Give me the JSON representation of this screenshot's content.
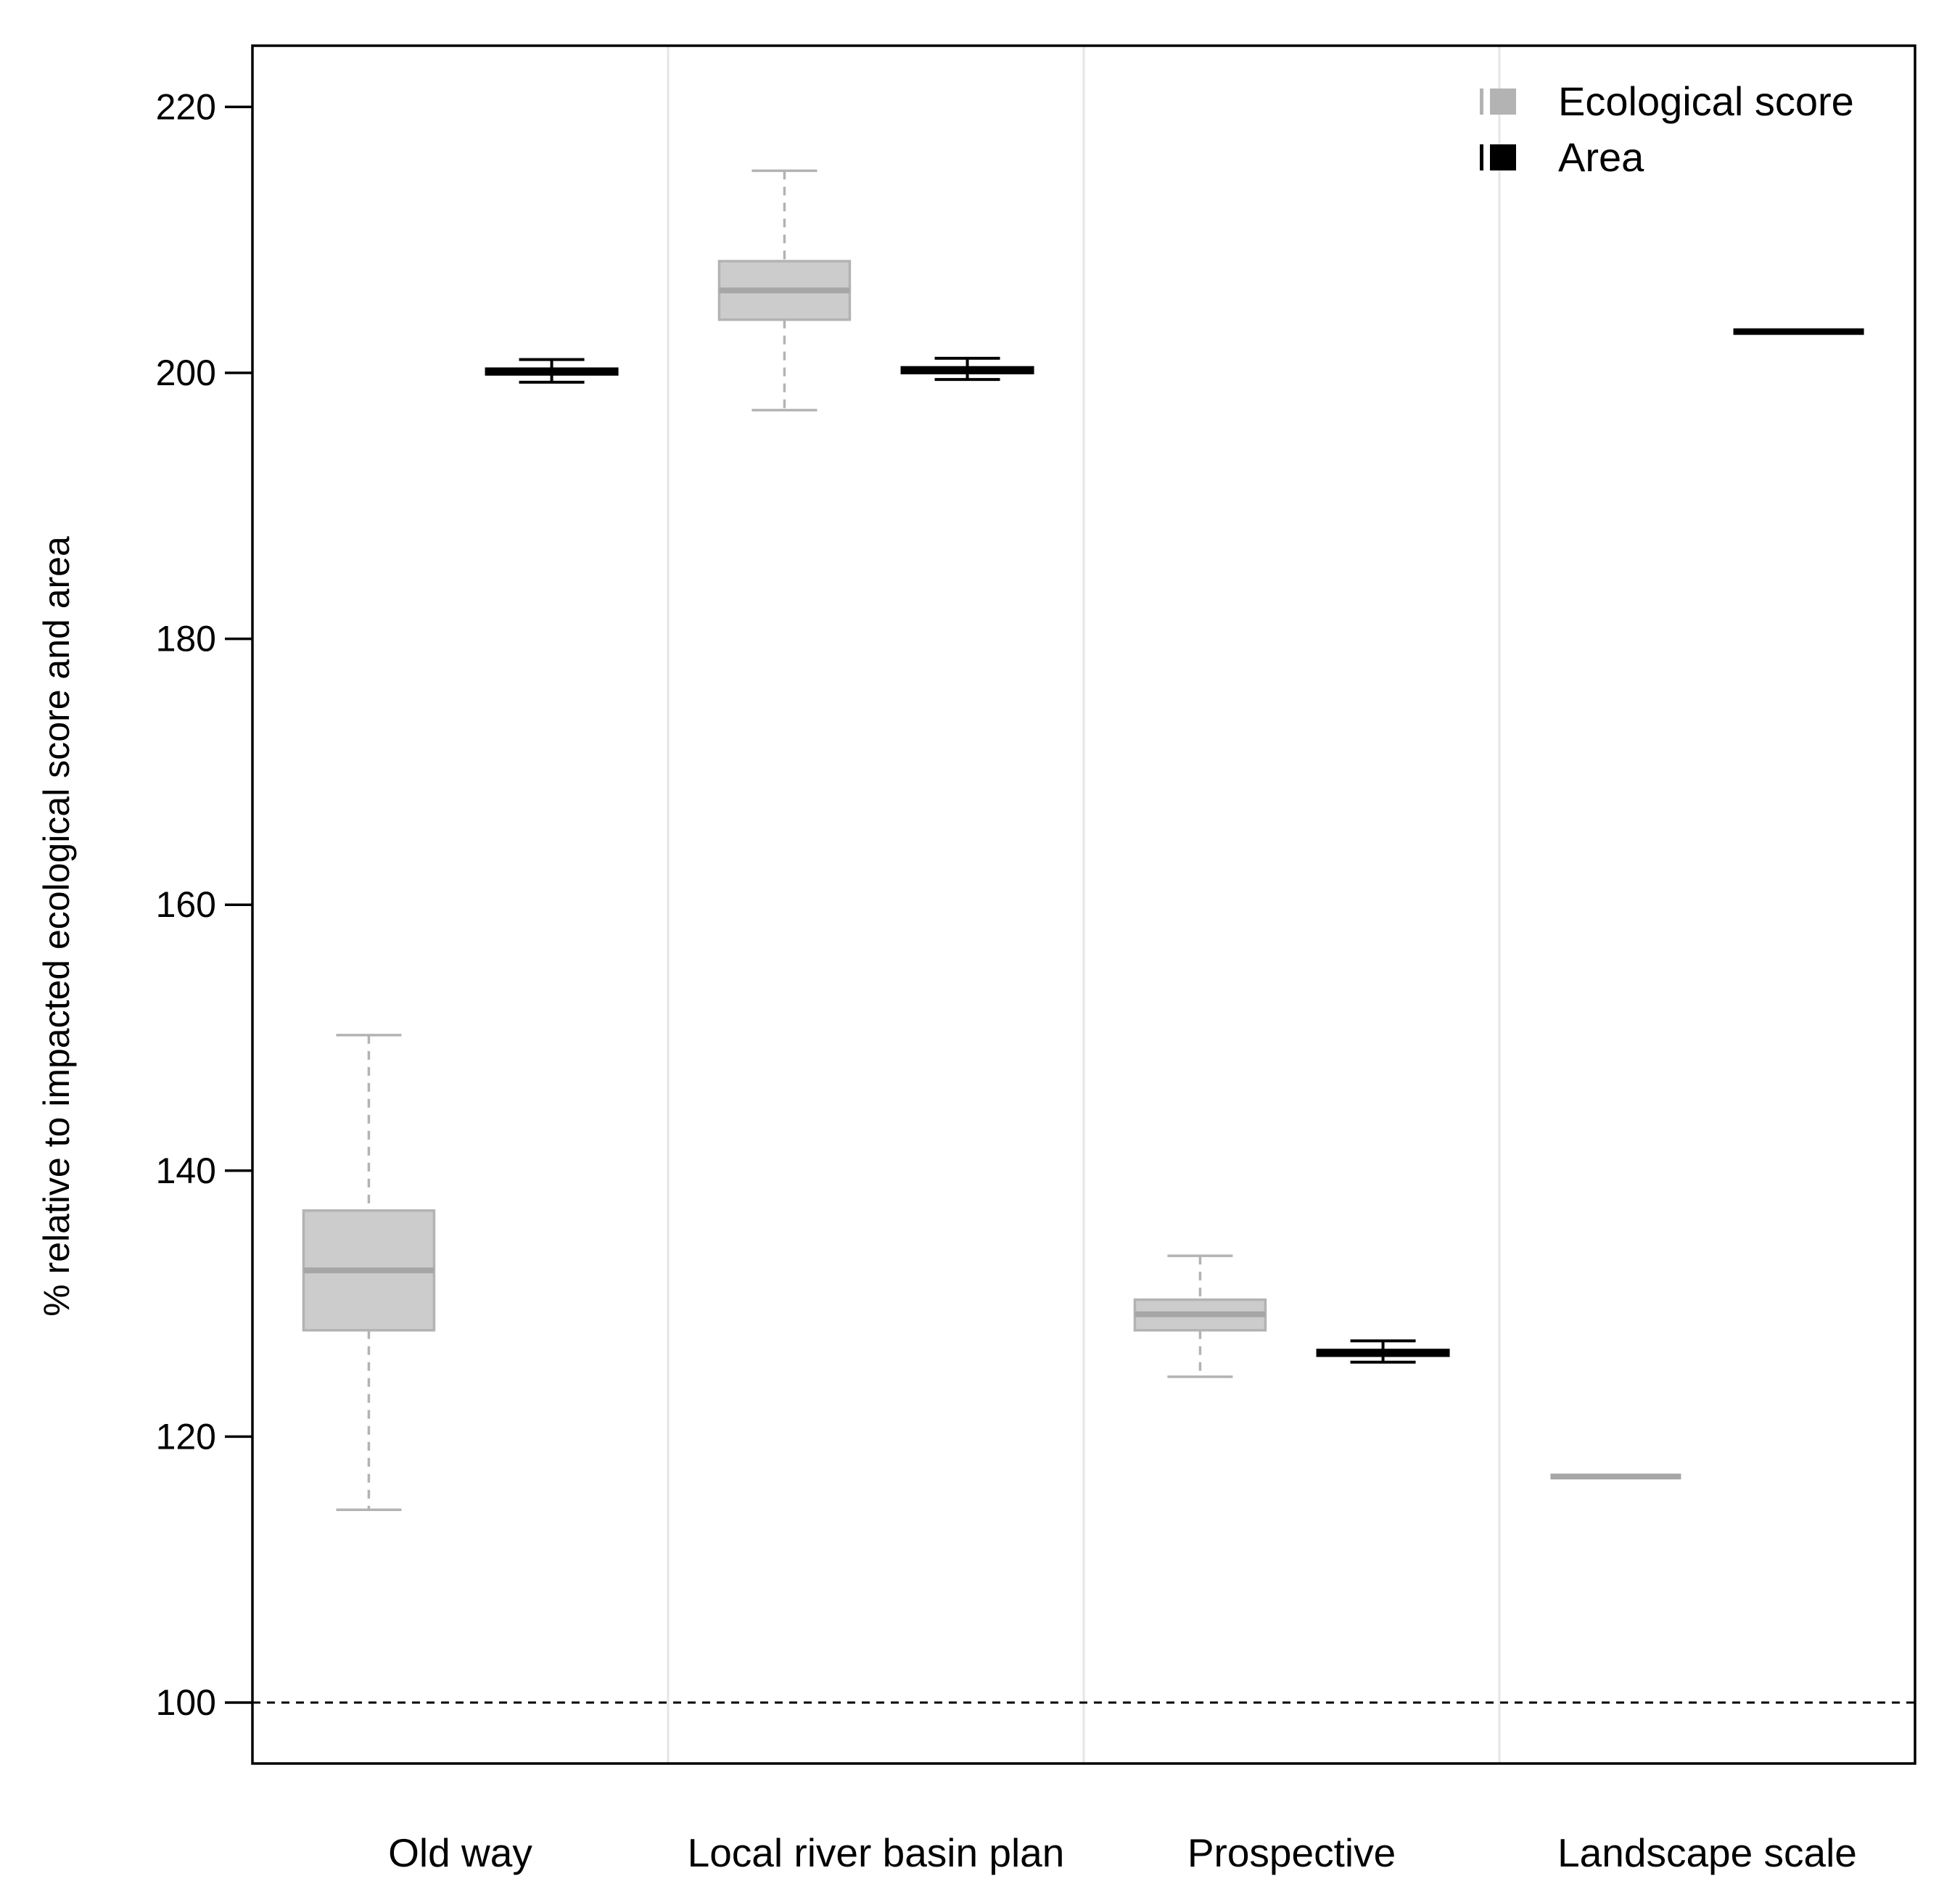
{
  "chart_data": {
    "type": "boxplot",
    "title": "",
    "xlabel": "",
    "ylabel": "% relative to impacted ecological score and area",
    "ylim": [
      95,
      225
    ],
    "yticks": [
      100,
      120,
      140,
      160,
      180,
      200,
      220
    ],
    "reference_line": 100,
    "categories": [
      "Old way",
      "Local river basin plan",
      "Prospective",
      "Landscape scale"
    ],
    "legend": {
      "placement": "top-right",
      "entries": [
        {
          "name": "Ecological score",
          "color": "#b3b3b3"
        },
        {
          "name": "Area",
          "color": "#000000"
        }
      ]
    },
    "series": [
      {
        "name": "Ecological score",
        "color": "#b3b3b3",
        "fill": "#cccccc",
        "boxes": [
          {
            "min": 114.5,
            "q1": 128,
            "median": 132.5,
            "q3": 137,
            "max": 150.2
          },
          {
            "min": 197.2,
            "q1": 204,
            "median": 206.2,
            "q3": 208.4,
            "max": 215.2
          },
          {
            "min": 124.5,
            "q1": 128,
            "median": 129.2,
            "q3": 130.3,
            "max": 133.6
          },
          {
            "min": 117,
            "q1": 117,
            "median": 117,
            "q3": 117,
            "max": 117
          }
        ]
      },
      {
        "name": "Area",
        "color": "#000000",
        "fill": "#000000",
        "boxes": [
          {
            "min": 199.3,
            "q1": 199.9,
            "median": 200.1,
            "q3": 200.3,
            "max": 201.0
          },
          {
            "min": 199.5,
            "q1": 200.0,
            "median": 200.2,
            "q3": 200.4,
            "max": 201.1
          },
          {
            "min": 125.6,
            "q1": 126.1,
            "median": 126.3,
            "q3": 126.5,
            "max": 127.2
          },
          {
            "min": 203.1,
            "q1": 203.1,
            "median": 203.1,
            "q3": 203.1,
            "max": 203.1
          }
        ]
      }
    ]
  }
}
